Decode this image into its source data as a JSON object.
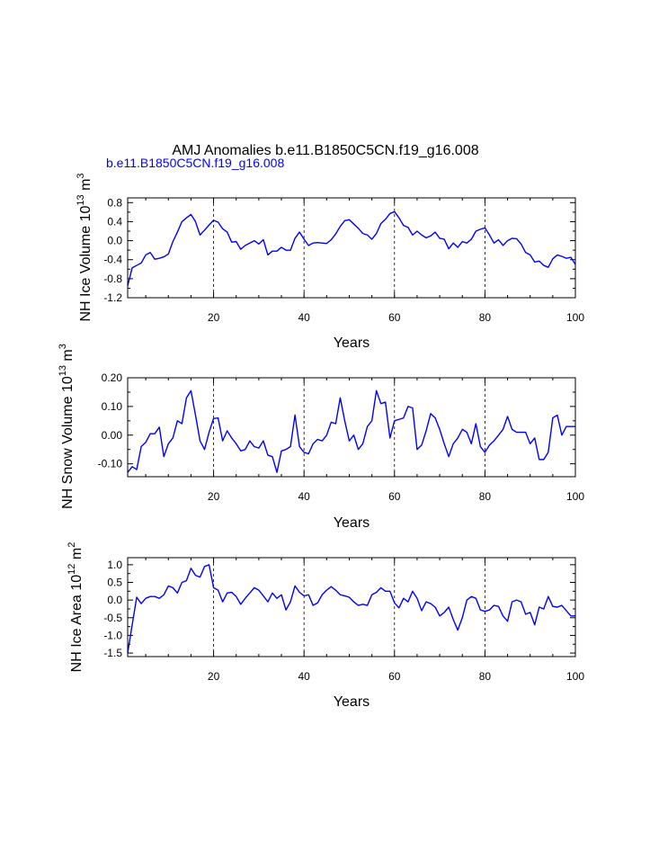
{
  "figure": {
    "title": "AMJ Anomalies b.e11.B1850C5CN.f19_g16.008",
    "subtitle": "b.e11.B1850C5CN.f19_g16.008",
    "subtitle_color": "#0000ff",
    "line_color": "#0000ff"
  },
  "chart_data": [
    {
      "type": "line",
      "title": "",
      "xlabel": "Years",
      "ylabel": "NH Ice Volume 10",
      "ylabel_exp": "13",
      "ylabel_unit": " m",
      "ylabel_unit_exp": "3",
      "xlim": [
        1,
        100
      ],
      "ylim": [
        -1.2,
        0.9
      ],
      "xticks": [
        20,
        40,
        60,
        80,
        100
      ],
      "yticks": [
        -1.2,
        -0.8,
        -0.4,
        0.0,
        0.4,
        0.8
      ],
      "ytick_labels": [
        "-1.2",
        "-0.8",
        "-0.4",
        "0.0",
        "0.4",
        "0.8"
      ],
      "grid_x": [
        20,
        40,
        60,
        80
      ],
      "series": [
        {
          "name": "b.e11.B1850C5CN.f19_g16.008",
          "x": [
            1,
            2,
            3,
            4,
            5,
            6,
            7,
            8,
            9,
            10,
            11,
            12,
            13,
            14,
            15,
            16,
            17,
            18,
            19,
            20,
            21,
            22,
            23,
            24,
            25,
            26,
            27,
            28,
            29,
            30,
            31,
            32,
            33,
            34,
            35,
            36,
            37,
            38,
            39,
            40,
            41,
            42,
            43,
            44,
            45,
            46,
            47,
            48,
            49,
            50,
            51,
            52,
            53,
            54,
            55,
            56,
            57,
            58,
            59,
            60,
            61,
            62,
            63,
            64,
            65,
            66,
            67,
            68,
            69,
            70,
            71,
            72,
            73,
            74,
            75,
            76,
            77,
            78,
            79,
            80,
            81,
            82,
            83,
            84,
            85,
            86,
            87,
            88,
            89,
            90,
            91,
            92,
            93,
            94,
            95,
            96,
            97,
            98,
            99,
            100
          ],
          "values": [
            -0.95,
            -0.57,
            -0.52,
            -0.47,
            -0.3,
            -0.25,
            -0.39,
            -0.37,
            -0.34,
            -0.28,
            -0.02,
            0.18,
            0.4,
            0.48,
            0.55,
            0.4,
            0.12,
            0.22,
            0.33,
            0.43,
            0.39,
            0.25,
            0.18,
            -0.03,
            -0.02,
            -0.18,
            -0.1,
            -0.05,
            0.0,
            -0.07,
            0.02,
            -0.3,
            -0.22,
            -0.22,
            -0.14,
            -0.2,
            -0.2,
            0.05,
            0.18,
            0.03,
            -0.1,
            -0.05,
            -0.04,
            -0.05,
            -0.06,
            0.02,
            0.14,
            0.3,
            0.42,
            0.44,
            0.35,
            0.26,
            0.15,
            0.12,
            0.03,
            0.15,
            0.36,
            0.45,
            0.57,
            0.61,
            0.48,
            0.32,
            0.28,
            0.12,
            0.2,
            0.12,
            0.06,
            0.1,
            0.18,
            0.05,
            0.03,
            -0.17,
            -0.05,
            -0.14,
            -0.02,
            -0.05,
            0.03,
            0.2,
            0.24,
            0.27,
            0.12,
            -0.05,
            0.02,
            -0.1,
            0.0,
            0.05,
            0.04,
            -0.07,
            -0.25,
            -0.3,
            -0.45,
            -0.43,
            -0.52,
            -0.56,
            -0.38,
            -0.3,
            -0.33,
            -0.37,
            -0.35,
            -0.5
          ]
        }
      ]
    },
    {
      "type": "line",
      "title": "",
      "xlabel": "Years",
      "ylabel": "NH Snow Volume 10",
      "ylabel_exp": "13",
      "ylabel_unit": " m",
      "ylabel_unit_exp": "3",
      "xlim": [
        1,
        100
      ],
      "ylim": [
        -0.145,
        0.2
      ],
      "xticks": [
        20,
        40,
        60,
        80,
        100
      ],
      "yticks": [
        -0.1,
        0.0,
        0.1,
        0.2
      ],
      "ytick_labels": [
        "-0.10",
        "0.00",
        "0.10",
        "0.20"
      ],
      "grid_x": [
        20,
        40,
        60,
        80
      ],
      "series": [
        {
          "name": "b.e11.B1850C5CN.f19_g16.008",
          "x": [
            1,
            2,
            3,
            4,
            5,
            6,
            7,
            8,
            9,
            10,
            11,
            12,
            13,
            14,
            15,
            16,
            17,
            18,
            19,
            20,
            21,
            22,
            23,
            24,
            25,
            26,
            27,
            28,
            29,
            30,
            31,
            32,
            33,
            34,
            35,
            36,
            37,
            38,
            39,
            40,
            41,
            42,
            43,
            44,
            45,
            46,
            47,
            48,
            49,
            50,
            51,
            52,
            53,
            54,
            55,
            56,
            57,
            58,
            59,
            60,
            61,
            62,
            63,
            64,
            65,
            66,
            67,
            68,
            69,
            70,
            71,
            72,
            73,
            74,
            75,
            76,
            77,
            78,
            79,
            80,
            81,
            82,
            83,
            84,
            85,
            86,
            87,
            88,
            89,
            90,
            91,
            92,
            93,
            94,
            95,
            96,
            97,
            98,
            99,
            100
          ],
          "values": [
            -0.13,
            -0.11,
            -0.12,
            -0.04,
            -0.025,
            0.005,
            0.005,
            0.028,
            -0.075,
            -0.03,
            -0.01,
            0.05,
            0.04,
            0.13,
            0.155,
            0.07,
            -0.02,
            -0.05,
            0.01,
            0.058,
            0.06,
            -0.02,
            0.015,
            -0.01,
            -0.03,
            -0.055,
            -0.05,
            -0.02,
            -0.04,
            -0.045,
            -0.02,
            -0.07,
            -0.075,
            -0.13,
            -0.055,
            -0.05,
            -0.04,
            0.07,
            -0.04,
            -0.06,
            -0.065,
            -0.03,
            -0.015,
            -0.02,
            0.0,
            0.045,
            0.04,
            0.13,
            0.05,
            -0.02,
            0.0,
            -0.05,
            -0.03,
            0.03,
            0.05,
            0.155,
            0.11,
            0.115,
            -0.01,
            0.05,
            0.055,
            0.06,
            0.1,
            0.095,
            -0.05,
            -0.035,
            0.015,
            0.075,
            0.06,
            0.02,
            -0.03,
            -0.075,
            -0.03,
            -0.01,
            0.02,
            0.01,
            -0.03,
            0.04,
            -0.04,
            -0.06,
            -0.035,
            -0.02,
            0.0,
            0.02,
            0.065,
            0.02,
            0.01,
            0.01,
            0.01,
            -0.03,
            -0.01,
            -0.085,
            -0.085,
            -0.06,
            0.06,
            0.07,
            0.0,
            0.03,
            0.03,
            0.03
          ]
        }
      ]
    },
    {
      "type": "line",
      "title": "",
      "xlabel": "Years",
      "ylabel": "NH Ice Area 10",
      "ylabel_exp": "12",
      "ylabel_unit": " m",
      "ylabel_unit_exp": "2",
      "xlim": [
        1,
        100
      ],
      "ylim": [
        -1.6,
        1.2
      ],
      "xticks": [
        20,
        40,
        60,
        80,
        100
      ],
      "yticks": [
        -1.5,
        -1.0,
        -0.5,
        0.0,
        0.5,
        1.0
      ],
      "ytick_labels": [
        "-1.5",
        "-1.0",
        "-0.5",
        "0.0",
        "0.5",
        "1.0"
      ],
      "grid_x": [
        20,
        40,
        60,
        80
      ],
      "series": [
        {
          "name": "b.e11.B1850C5CN.f19_g16.008",
          "x": [
            1,
            2,
            3,
            4,
            5,
            6,
            7,
            8,
            9,
            10,
            11,
            12,
            13,
            14,
            15,
            16,
            17,
            18,
            19,
            20,
            21,
            22,
            23,
            24,
            25,
            26,
            27,
            28,
            29,
            30,
            31,
            32,
            33,
            34,
            35,
            36,
            37,
            38,
            39,
            40,
            41,
            42,
            43,
            44,
            45,
            46,
            47,
            48,
            49,
            50,
            51,
            52,
            53,
            54,
            55,
            56,
            57,
            58,
            59,
            60,
            61,
            62,
            63,
            64,
            65,
            66,
            67,
            68,
            69,
            70,
            71,
            72,
            73,
            74,
            75,
            76,
            77,
            78,
            79,
            80,
            81,
            82,
            83,
            84,
            85,
            86,
            87,
            88,
            89,
            90,
            91,
            92,
            93,
            94,
            95,
            96,
            97,
            98,
            99,
            100
          ],
          "values": [
            -1.5,
            -0.7,
            0.08,
            -0.1,
            0.05,
            0.1,
            0.1,
            0.05,
            0.15,
            0.4,
            0.35,
            0.2,
            0.5,
            0.55,
            0.9,
            0.7,
            0.65,
            0.95,
            1.0,
            0.35,
            0.28,
            -0.05,
            0.2,
            0.22,
            0.1,
            -0.12,
            0.05,
            0.2,
            0.35,
            0.28,
            0.12,
            -0.05,
            0.2,
            0.05,
            0.15,
            -0.28,
            -0.05,
            0.4,
            0.22,
            0.12,
            0.15,
            -0.15,
            -0.08,
            0.15,
            0.28,
            0.38,
            0.28,
            0.15,
            0.12,
            0.08,
            -0.05,
            -0.15,
            -0.12,
            -0.15,
            0.15,
            0.22,
            0.35,
            0.25,
            0.25,
            -0.08,
            -0.22,
            0.05,
            -0.05,
            0.25,
            0.05,
            -0.3,
            -0.05,
            -0.1,
            -0.2,
            -0.45,
            -0.35,
            -0.2,
            -0.55,
            -0.85,
            -0.5,
            0.0,
            0.1,
            0.05,
            -0.28,
            -0.32,
            -0.28,
            -0.15,
            -0.18,
            -0.45,
            -0.6,
            -0.05,
            0.0,
            -0.05,
            -0.4,
            -0.35,
            -0.7,
            -0.2,
            -0.25,
            0.1,
            -0.18,
            -0.2,
            -0.15,
            -0.3,
            -0.45,
            -0.45
          ]
        }
      ]
    }
  ]
}
